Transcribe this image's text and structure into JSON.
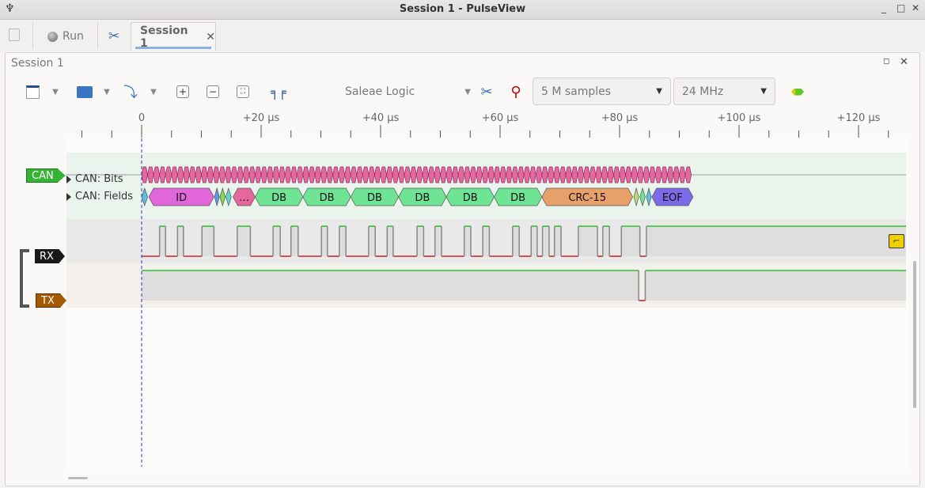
{
  "window": {
    "title": "Session 1 - PulseView"
  },
  "tabs": {
    "run_label": "Run",
    "session_label": "Session 1"
  },
  "session": {
    "title": "Session 1"
  },
  "toolbar": {
    "device": "Saleae Logic",
    "samples": "5 M samples",
    "samplerate": "24 MHz"
  },
  "ruler": {
    "labels": [
      "0",
      "+20 µs",
      "+40 µs",
      "+60 µs",
      "+80 µs",
      "+100 µs",
      "+120 µs"
    ],
    "units": "µs",
    "major_step_us": 20,
    "minor_step_us": 5
  },
  "channels": {
    "decoder": {
      "label": "CAN",
      "color": "#36b336",
      "rows": [
        {
          "label": "CAN: Bits"
        },
        {
          "label": "CAN: Fields"
        }
      ]
    },
    "rx": {
      "label": "RX",
      "color": "#1a1a1a"
    },
    "tx": {
      "label": "TX",
      "color": "#a35a00"
    }
  },
  "can_bits": {
    "start_us": 0,
    "count": 92,
    "bit_us": 1,
    "color": "#e6679d"
  },
  "can_fields": [
    {
      "label": "",
      "start": 0,
      "end": 1,
      "color": "#5bc0de"
    },
    {
      "label": "ID",
      "start": 1.2,
      "end": 12.1,
      "color": "#e066d9"
    },
    {
      "label": "",
      "start": 12.2,
      "end": 13,
      "color": "#6495ed"
    },
    {
      "label": "",
      "start": 13.1,
      "end": 14,
      "color": "#7ed957"
    },
    {
      "label": "",
      "start": 14.1,
      "end": 15,
      "color": "#5fdbc8"
    },
    {
      "label": "…",
      "start": 15.3,
      "end": 19,
      "color": "#e6679d"
    },
    {
      "label": "DB",
      "start": 19,
      "end": 27,
      "color": "#6fe495"
    },
    {
      "label": "DB",
      "start": 27,
      "end": 35,
      "color": "#6fe495"
    },
    {
      "label": "DB",
      "start": 35,
      "end": 43,
      "color": "#6fe495"
    },
    {
      "label": "DB",
      "start": 43,
      "end": 51,
      "color": "#6fe495"
    },
    {
      "label": "DB",
      "start": 51,
      "end": 59,
      "color": "#6fe495"
    },
    {
      "label": "DB",
      "start": 59,
      "end": 67,
      "color": "#6fe495"
    },
    {
      "label": "CRC-15",
      "start": 67,
      "end": 82.2,
      "color": "#e8a06b"
    },
    {
      "label": "",
      "start": 82.4,
      "end": 83.2,
      "color": "#b5e06b"
    },
    {
      "label": "",
      "start": 83.4,
      "end": 84.3,
      "color": "#6fe495"
    },
    {
      "label": "",
      "start": 84.5,
      "end": 85.3,
      "color": "#5bc8e0"
    },
    {
      "label": "EOF",
      "start": 85.4,
      "end": 92.3,
      "color": "#7b6be6"
    }
  ],
  "rx_signal": {
    "initial": 0,
    "high_intervals": [
      [
        3.0,
        4.0
      ],
      [
        6.0,
        7.0
      ],
      [
        10.1,
        12.1
      ],
      [
        16.0,
        18.2
      ],
      [
        22.0,
        23.2
      ],
      [
        25.0,
        26.2
      ],
      [
        30.1,
        31.1
      ],
      [
        33.1,
        34.2
      ],
      [
        38.0,
        39.1
      ],
      [
        41.1,
        42.1
      ],
      [
        46.1,
        47.2
      ],
      [
        49.1,
        50.2
      ],
      [
        54.0,
        55.1
      ],
      [
        57.1,
        58.2
      ],
      [
        62.1,
        63.2
      ],
      [
        65.2,
        66.2
      ],
      [
        67.1,
        68.2
      ],
      [
        69.1,
        70.2
      ],
      [
        73.1,
        76.3
      ],
      [
        77.2,
        78.3
      ],
      [
        80.3,
        83.4
      ],
      [
        84.5,
        130
      ]
    ]
  },
  "tx_signal": {
    "initial": 1,
    "low_intervals": [
      [
        83.2,
        84.3
      ]
    ]
  },
  "colors": {
    "high": "#00c000",
    "low": "#c00000",
    "cursor": "#3030c0"
  }
}
